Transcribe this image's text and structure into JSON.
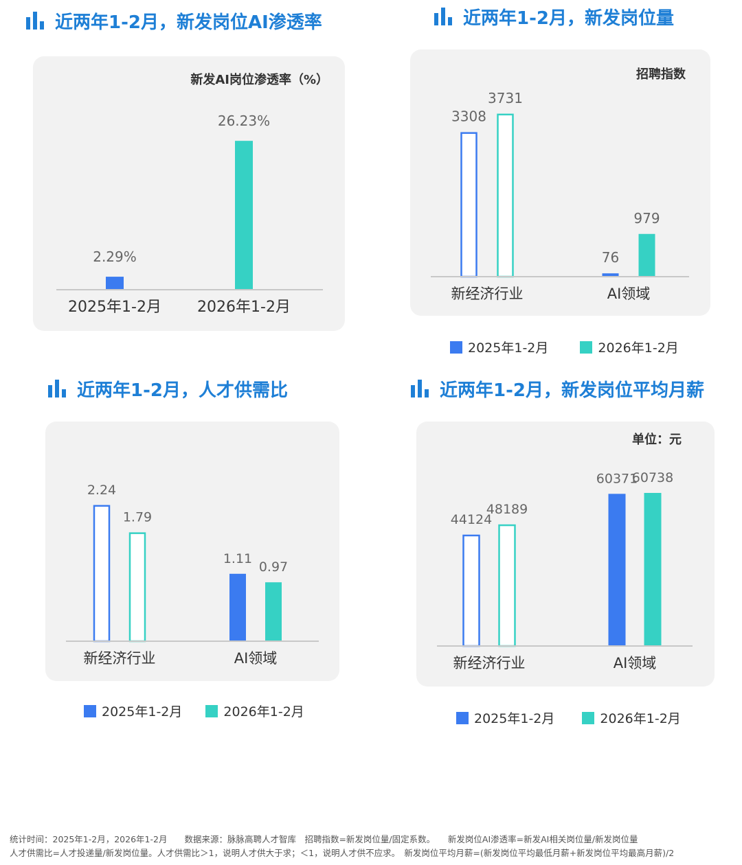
{
  "colors": {
    "blue": "#3b7bf0",
    "teal": "#36d1c4",
    "title": "#1e7fd6",
    "axis": "#c8c8c8",
    "value": "#666666",
    "label": "#333333"
  },
  "panels": [
    {
      "title": "近两年1-2月，新发岗位AI渗透率",
      "icon": "bar-chart-icon"
    },
    {
      "title": "近两年1-2月，新发岗位量",
      "icon": "bar-chart-icon"
    },
    {
      "title": "近两年1-2月，人才供需比",
      "icon": "bar-chart-icon"
    },
    {
      "title": "近两年1-2月，新发岗位平均月薪",
      "icon": "bar-chart-icon"
    }
  ],
  "legend": {
    "series1": "2025年1-2月",
    "series2": "2026年1-2月"
  },
  "chart_data": [
    {
      "type": "bar",
      "title": "近两年1-2月，新发岗位AI渗透率",
      "ylabel": "新发AI岗位渗透率（%）",
      "categories": [
        "2025年1-2月",
        "2026年1-2月"
      ],
      "values": [
        2.29,
        26.23
      ],
      "value_labels": [
        "2.29%",
        "26.23%"
      ],
      "ylim": [
        0,
        30
      ]
    },
    {
      "type": "bar",
      "title": "近两年1-2月，新发岗位量",
      "ylabel": "招聘指数",
      "categories": [
        "新经济行业",
        "AI领域"
      ],
      "series": [
        {
          "name": "2025年1-2月",
          "values": [
            3308,
            76
          ]
        },
        {
          "name": "2026年1-2月",
          "values": [
            3731,
            979
          ]
        }
      ],
      "ylim": [
        0,
        4200
      ],
      "legend": "bottom"
    },
    {
      "type": "bar",
      "title": "近两年1-2月，人才供需比",
      "ylabel": "",
      "categories": [
        "新经济行业",
        "AI领域"
      ],
      "series": [
        {
          "name": "2025年1-2月",
          "values": [
            2.24,
            1.11
          ]
        },
        {
          "name": "2026年1-2月",
          "values": [
            1.79,
            0.97
          ]
        }
      ],
      "ylim": [
        0,
        2.6
      ],
      "legend": "bottom"
    },
    {
      "type": "bar",
      "title": "近两年1-2月，新发岗位平均月薪",
      "ylabel": "单位：元",
      "categories": [
        "新经济行业",
        "AI领域"
      ],
      "series": [
        {
          "name": "2025年1-2月",
          "values": [
            44124,
            60371
          ]
        },
        {
          "name": "2026年1-2月",
          "values": [
            48189,
            60738
          ]
        }
      ],
      "ylim": [
        0,
        70000
      ],
      "legend": "bottom"
    }
  ],
  "footer": {
    "line1": "统计时间：2025年1-2月，2026年1-2月　　数据来源：脉脉高聘人才智库　招聘指数=新发岗位量/固定系数。　　新发岗位AI渗透率=新发AI相关岗位量/新发岗位量",
    "line2": "人才供需比=人才投递量/新发岗位量。人才供需比＞1，说明人才供大于求；＜1，说明人才供不应求。　新发岗位平均月薪=(新发岗位平均最低月薪+新发岗位平均最高月薪)/2"
  }
}
